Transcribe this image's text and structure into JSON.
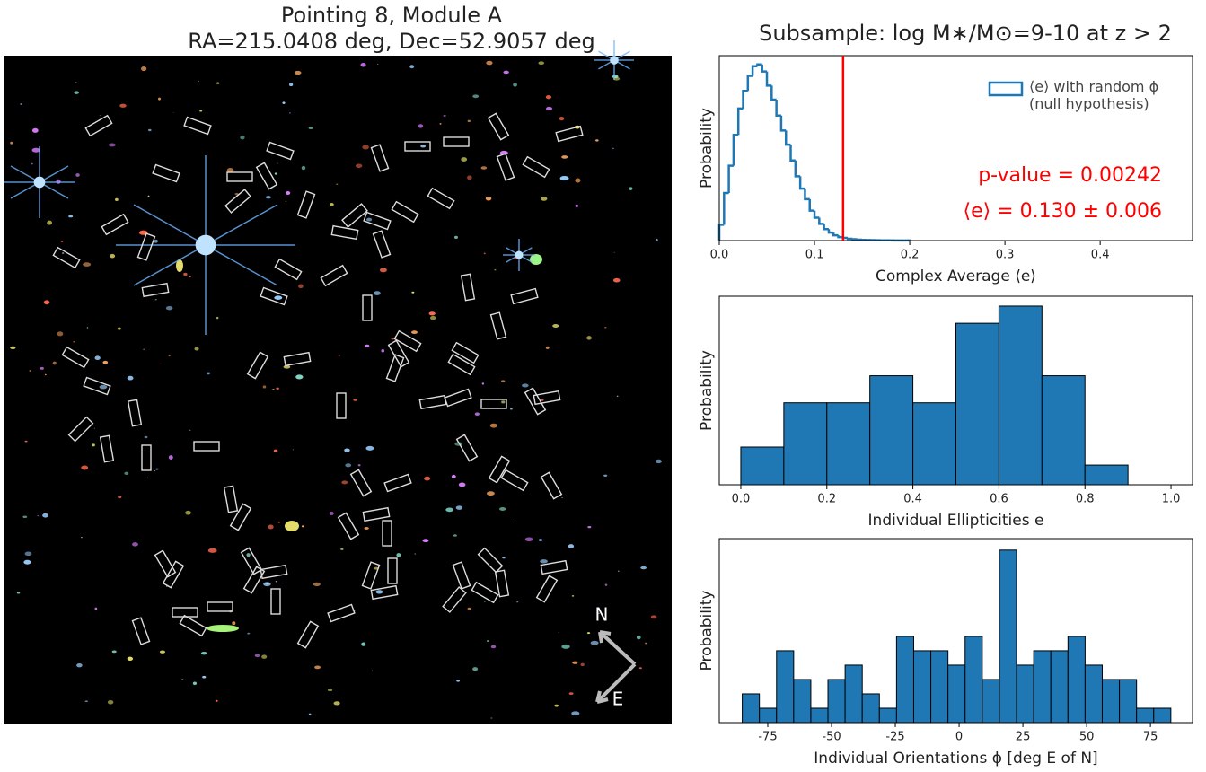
{
  "image": {
    "title": [
      "Pointing 8, Module A",
      "RA=215.0408 deg, Dec=52.9057 deg"
    ],
    "compass": {
      "north": "N",
      "east": "E"
    }
  },
  "chart_data": [
    {
      "type": "histogram",
      "histtype": "step",
      "title": "Subsample: log M∗/M⊙=9-10 at z > 2",
      "name": "⟨e⟩ with random ϕ\n(null hypothesis)",
      "legend": "upper right",
      "color": "#1f77b4",
      "xlabel": "Complex Average ⟨e⟩",
      "ylabel": "Probability",
      "bins": [
        0,
        0.005,
        0.01,
        0.015,
        0.02,
        0.025,
        0.03,
        0.035,
        0.04,
        0.045,
        0.05,
        0.055,
        0.06,
        0.065,
        0.07,
        0.075,
        0.08,
        0.085,
        0.09,
        0.095,
        0.1,
        0.105,
        0.11,
        0.115,
        0.12,
        0.125,
        0.13,
        0.135,
        0.14,
        0.145,
        0.15,
        0.155,
        0.16,
        0.165,
        0.17,
        0.175,
        0.18,
        0.185,
        0.19,
        0.195,
        0.2
      ],
      "values": [
        1.8,
        5.4,
        8.5,
        12,
        15,
        17,
        18.7,
        19.8,
        20,
        19.2,
        17.6,
        16,
        14.2,
        12.5,
        10.9,
        9.1,
        7.3,
        5.9,
        4.7,
        3.4,
        2.6,
        1.9,
        1.3,
        0.9,
        0.6,
        0.4,
        0.3,
        0.2,
        0.15,
        0.1,
        0.08,
        0.06,
        0.05,
        0.04,
        0.03,
        0.02,
        0.02,
        0.01,
        0.01,
        0.01
      ],
      "xlim": [
        0,
        0.497
      ],
      "ylim": [
        0,
        21
      ],
      "xticks": [
        {
          "value": 0,
          "label": "0.0"
        },
        0.1,
        0.2,
        0.3,
        0.4
      ],
      "vline": {
        "value": 0.13,
        "color": "#ff0000"
      },
      "annotations": [
        "p-value = 0.00242",
        "⟨e⟩ = 0.130 ± 0.006"
      ],
      "annotation_color": "#ff0000"
    },
    {
      "type": "histogram",
      "color": "#1f77b4",
      "edgecolor": "#000000",
      "xlabel": "Individual Ellipticities e",
      "ylabel": "Probability",
      "bins": [
        0,
        0.1,
        0.2,
        0.3,
        0.4,
        0.5,
        0.6,
        0.7,
        0.8,
        0.9
      ],
      "values": [
        0.46,
        1.0,
        1.0,
        1.33,
        1.0,
        1.97,
        2.18,
        1.33,
        0.24
      ],
      "xlim": [
        -0.05,
        1.05
      ],
      "ylim": [
        0,
        2.3
      ],
      "xticks": [
        {
          "value": 0,
          "label": "0.0"
        },
        0.2,
        0.4,
        0.6,
        0.8,
        {
          "value": 1,
          "label": "1.0"
        }
      ]
    },
    {
      "type": "histogram",
      "color": "#1f77b4",
      "edgecolor": "#000000",
      "xlabel": "Individual Orientations ϕ [deg E of N]",
      "ylabel": "Probability",
      "bins": [
        -85,
        -78.28,
        -71.56,
        -64.84,
        -58.12,
        -51.4,
        -44.68,
        -37.96,
        -31.24,
        -24.52,
        -17.8,
        -11.08,
        -4.36,
        2.36,
        9.08,
        15.8,
        22.52,
        29.24,
        35.96,
        42.68,
        49.4,
        56.12,
        62.84,
        69.56,
        76.28,
        83
      ],
      "values": [
        2,
        1,
        5,
        3,
        1,
        3,
        4,
        2,
        1,
        6,
        5,
        5,
        4,
        6,
        3,
        12,
        4,
        5,
        5,
        6,
        4,
        3,
        3,
        1,
        1
      ],
      "xlim": [
        -94,
        91.5
      ],
      "ylim": [
        0,
        12.8
      ],
      "xticks": [
        -75,
        -50,
        -25,
        0,
        25,
        50,
        75
      ]
    }
  ]
}
